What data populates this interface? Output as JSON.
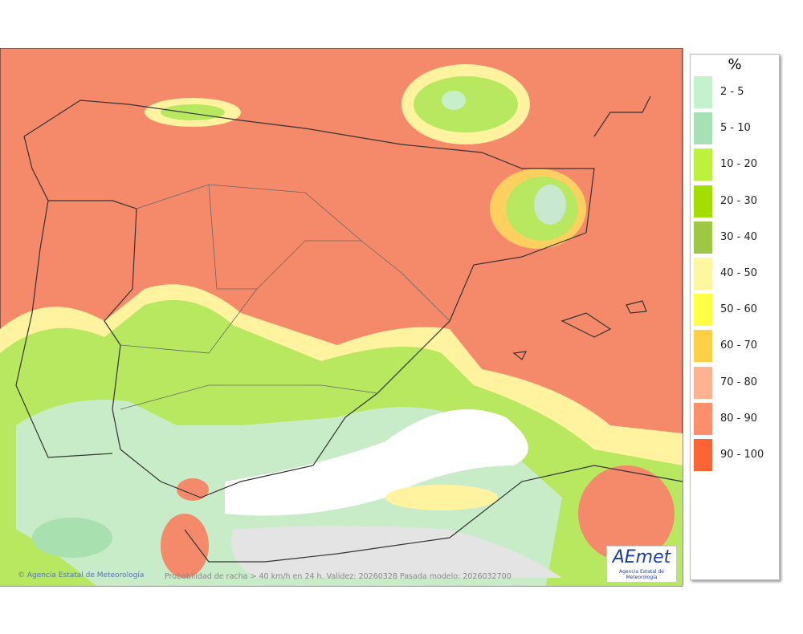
{
  "legend": {
    "title": "%",
    "items": [
      {
        "label": "2 - 5",
        "color": "#c4f2cc"
      },
      {
        "label": "5 - 10",
        "color": "#a6e0b4"
      },
      {
        "label": "10 - 20",
        "color": "#bdf23c"
      },
      {
        "label": "20 - 30",
        "color": "#a2de00"
      },
      {
        "label": "30 - 40",
        "color": "#9cc844"
      },
      {
        "label": "40 - 50",
        "color": "#fff6a0"
      },
      {
        "label": "50 - 60",
        "color": "#ffff44"
      },
      {
        "label": "60 - 70",
        "color": "#ffd044"
      },
      {
        "label": "70 - 80",
        "color": "#ffb290"
      },
      {
        "label": "80 - 90",
        "color": "#ff8e6c"
      },
      {
        "label": "90 - 100",
        "color": "#ff6434"
      }
    ]
  },
  "footer": {
    "credit": "Agencia Estatal de Meteorología",
    "caption": "Probabilidad de racha > 40 km/h en 24 h. Validez: 20260328 Pasada modelo: 2026032700"
  },
  "logo": {
    "text": "AEmet",
    "subtitle": "Agencia Estatal de Meteorología"
  }
}
